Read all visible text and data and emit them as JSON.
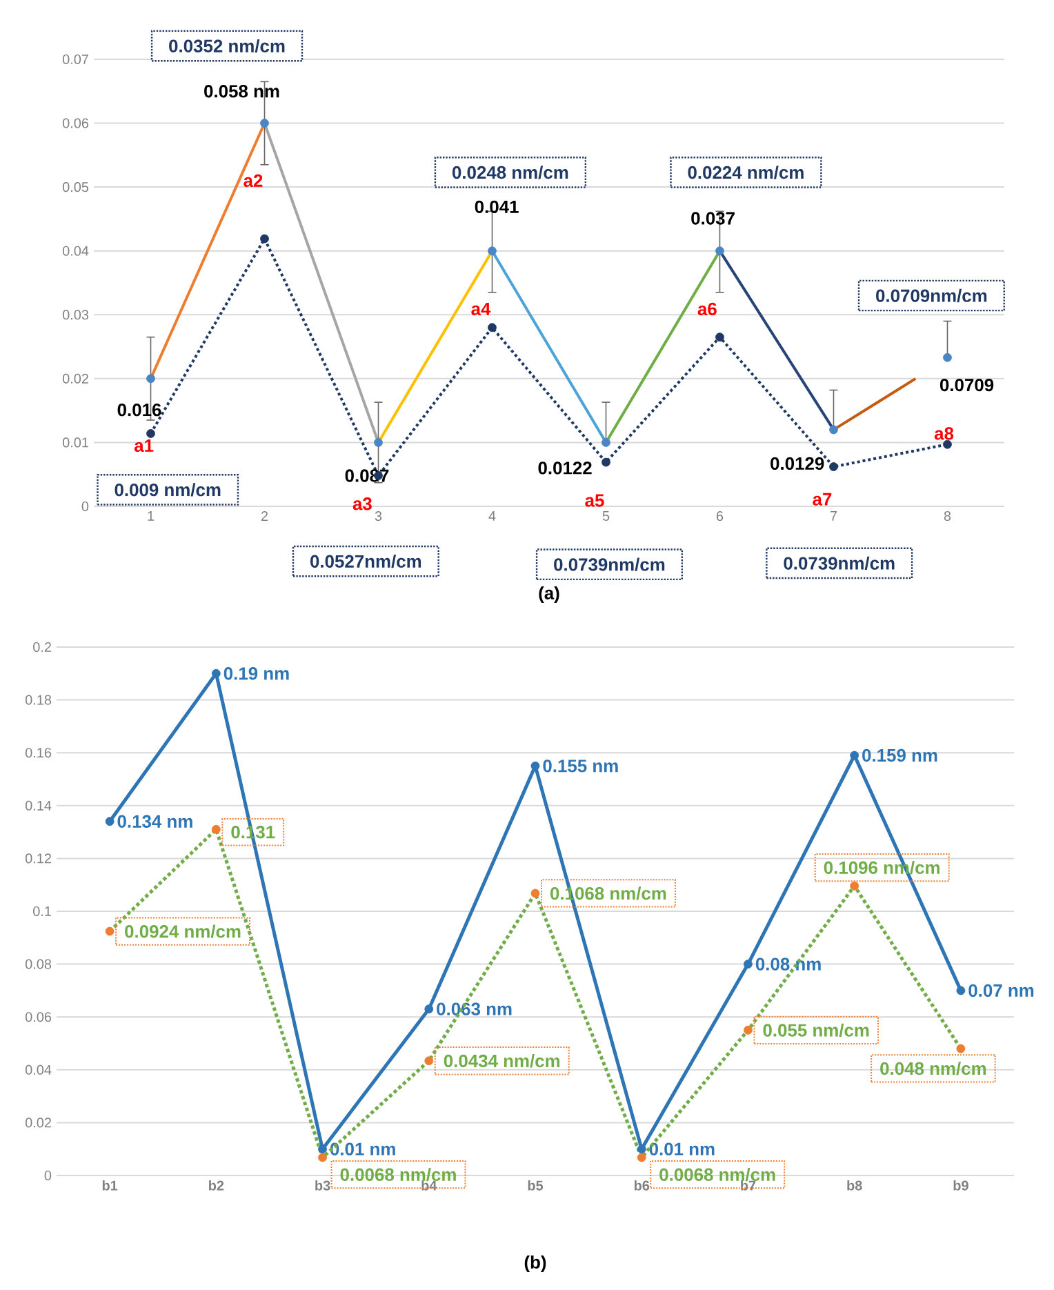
{
  "chart_data": [
    {
      "type": "line",
      "xlim": [
        0.5,
        8.5
      ],
      "xticks": [
        1,
        2,
        3,
        4,
        5,
        6,
        7,
        8
      ],
      "ylim": [
        0,
        0.07
      ],
      "yticks": [
        0,
        0.01,
        0.02,
        0.03,
        0.04,
        0.05,
        0.06,
        0.07
      ],
      "grid": "y",
      "series": [
        {
          "type": "line",
          "x": [
            1,
            2
          ],
          "values": [
            0.02,
            0.06
          ],
          "color": "#ed7d31",
          "marker": "none"
        },
        {
          "type": "line",
          "x": [
            2,
            3
          ],
          "values": [
            0.06,
            0.01
          ],
          "color": "#a5a5a5",
          "marker": "none"
        },
        {
          "type": "line",
          "x": [
            3,
            4
          ],
          "values": [
            0.01,
            0.04
          ],
          "color": "#ffc000",
          "marker": "none"
        },
        {
          "type": "line",
          "x": [
            4,
            5
          ],
          "values": [
            0.04,
            0.01
          ],
          "color": "#4ba3d8",
          "marker": "none"
        },
        {
          "type": "line",
          "x": [
            5,
            6
          ],
          "values": [
            0.01,
            0.04
          ],
          "color": "#70ad47",
          "marker": "none"
        },
        {
          "type": "line",
          "x": [
            6,
            7
          ],
          "values": [
            0.04,
            0.012
          ],
          "color": "#264478",
          "marker": "none"
        },
        {
          "type": "line",
          "x": [
            7,
            7.72
          ],
          "values": [
            0.012,
            0.02
          ],
          "color": "#c55a11",
          "marker": "none"
        },
        {
          "type": "scatter",
          "x": [
            1,
            2,
            3,
            4,
            5,
            6,
            7,
            8
          ],
          "values": [
            0.02,
            0.06,
            0.01,
            0.04,
            0.01,
            0.04,
            0.012,
            0.0233
          ],
          "color": "#4a86c5",
          "marker": "circle",
          "errors": [
            [
              0.0135,
              0.0265
            ],
            [
              0.0535,
              0.0665
            ],
            [
              0.0037,
              0.0163
            ],
            [
              0.0335,
              0.0462
            ],
            [
              0.01,
              0.0163
            ],
            [
              0.0335,
              0.0462
            ],
            [
              0.012,
              0.0182
            ],
            [
              0.0233,
              0.029
            ]
          ]
        },
        {
          "type": "line",
          "x": [
            1,
            2,
            3,
            4,
            5,
            6,
            7,
            8
          ],
          "values": [
            0.0114,
            0.0419,
            0.0048,
            0.028,
            0.0069,
            0.0265,
            0.0062,
            0.0097
          ],
          "color": "#1f3864",
          "marker": "circle",
          "line_style": "dotted"
        }
      ],
      "annotations": [
        "0.0352 nm/cm",
        "0.058 nm",
        "a2",
        "0.016",
        "a1",
        "0.009 nm/cm",
        "0.087",
        "a3",
        "0.0527nm/cm",
        "0.0248 nm/cm",
        "0.041",
        "a4",
        "0.0122",
        "a5",
        "0.0739nm/cm",
        "0.0224 nm/cm",
        "0.037",
        "a6",
        "0.0129",
        "a7",
        "0.0739nm/cm",
        "0.0709nm/cm",
        "0.0709",
        "a8",
        "(a)"
      ]
    },
    {
      "type": "line",
      "categories": [
        "b1",
        "b2",
        "b3",
        "b4",
        "b5",
        "b6",
        "b7",
        "b8",
        "b9"
      ],
      "ylim": [
        0,
        0.2
      ],
      "yticks": [
        0,
        0.02,
        0.04,
        0.06,
        0.08,
        0.1,
        0.12,
        0.14,
        0.16,
        0.18,
        0.2
      ],
      "grid": "y",
      "series": [
        {
          "color": "#2e75b6",
          "marker": "circle",
          "values": [
            0.134,
            0.19,
            0.01,
            0.063,
            0.155,
            0.01,
            0.08,
            0.159,
            0.07
          ],
          "value_labels": [
            "0.134 nm",
            "0.19 nm",
            "0.01 nm",
            "0.063 nm",
            "0.155 nm",
            "0.01 nm",
            "0.08 nm",
            "0.159 nm",
            "0.07 nm"
          ]
        },
        {
          "color": "#70ad47",
          "line_style": "dotted",
          "marker": "none",
          "values": [
            0.0924,
            0.131,
            0.0068,
            0.0434,
            0.1068,
            0.0068,
            0.055,
            0.1096,
            0.048
          ]
        },
        {
          "type": "scatter",
          "color": "#ed7d31",
          "marker": "circle",
          "values": [
            0.0924,
            0.131,
            0.0068,
            0.0434,
            0.1068,
            0.0068,
            0.055,
            0.1096,
            0.048
          ],
          "value_labels": [
            "0.0924 nm/cm",
            "0.131",
            "0.0068 nm/cm",
            "0.0434 nm/cm",
            "0.1068 nm/cm",
            "0.0068 nm/cm",
            "0.055 nm/cm",
            "0.1096 nm/cm",
            "0.048 nm/cm"
          ]
        }
      ],
      "annotations": [
        "(b)"
      ]
    }
  ]
}
